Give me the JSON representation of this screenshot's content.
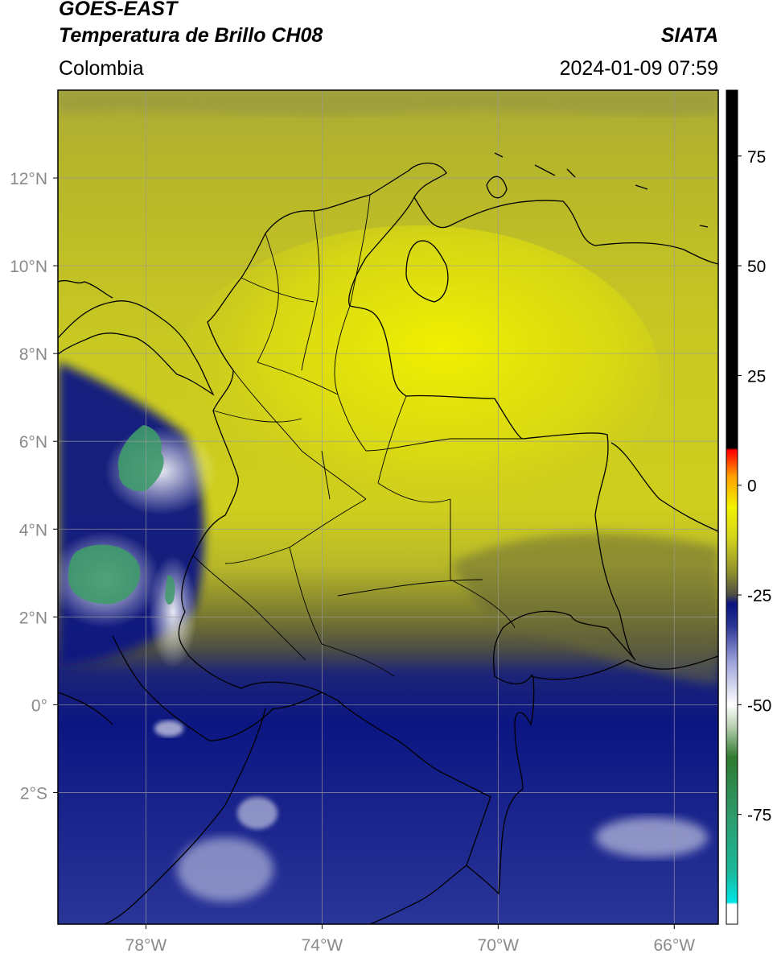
{
  "header": {
    "satellite": "GOES-EAST",
    "product": "Temperatura de Brillo CH08",
    "region": "Colombia",
    "agency": "SIATA",
    "datetime": "2024-01-09 07:59"
  },
  "map": {
    "lon_range": [
      -80,
      -65
    ],
    "lat_range": [
      -5,
      14
    ],
    "lat_ticks": [
      {
        "value": 12,
        "label": "12°N"
      },
      {
        "value": 10,
        "label": "10°N"
      },
      {
        "value": 8,
        "label": "8°N"
      },
      {
        "value": 6,
        "label": "6°N"
      },
      {
        "value": 4,
        "label": "4°N"
      },
      {
        "value": 2,
        "label": "2°N"
      },
      {
        "value": 0,
        "label": "0°"
      },
      {
        "value": -2,
        "label": "2°S"
      }
    ],
    "lon_ticks": [
      {
        "value": -78,
        "label": "78°W"
      },
      {
        "value": -74,
        "label": "74°W"
      },
      {
        "value": -70,
        "label": "70°W"
      },
      {
        "value": -66,
        "label": "66°W"
      }
    ],
    "gridlines": true
  },
  "colorbar": {
    "range": [
      -100,
      90
    ],
    "ticks": [
      {
        "value": 75,
        "label": "75"
      },
      {
        "value": 50,
        "label": "50"
      },
      {
        "value": 25,
        "label": "25"
      },
      {
        "value": 0,
        "label": "0"
      },
      {
        "value": -25,
        "label": "-25"
      },
      {
        "value": -50,
        "label": "-50"
      },
      {
        "value": -75,
        "label": "-75"
      }
    ],
    "stops": [
      {
        "value": -100,
        "color": "#ffffff"
      },
      {
        "value": -95.5,
        "color": "#ffffff"
      },
      {
        "value": -95,
        "color": "#00e5e5"
      },
      {
        "value": -88,
        "color": "#1ab89a"
      },
      {
        "value": -75,
        "color": "#2e9a6a"
      },
      {
        "value": -62,
        "color": "#2f7a2f"
      },
      {
        "value": -55,
        "color": "#b8d0b0"
      },
      {
        "value": -50,
        "color": "#ffffff"
      },
      {
        "value": -40,
        "color": "#9aa0d8"
      },
      {
        "value": -32,
        "color": "#2a3595"
      },
      {
        "value": -27,
        "color": "#0a1480"
      },
      {
        "value": -25,
        "color": "#4c4c45"
      },
      {
        "value": -20,
        "color": "#8e8e2e"
      },
      {
        "value": -12,
        "color": "#d4d41c"
      },
      {
        "value": -5,
        "color": "#f2f200"
      },
      {
        "value": 2,
        "color": "#ffa000"
      },
      {
        "value": 7,
        "color": "#ff1500"
      },
      {
        "value": 8,
        "color": "#ff0000"
      },
      {
        "value": 8.5,
        "color": "#000000"
      },
      {
        "value": 90,
        "color": "#000000"
      }
    ]
  },
  "colors": {
    "border": "#000000",
    "grid": "#9a9a9a",
    "tick_label": "#8a8a8a"
  }
}
